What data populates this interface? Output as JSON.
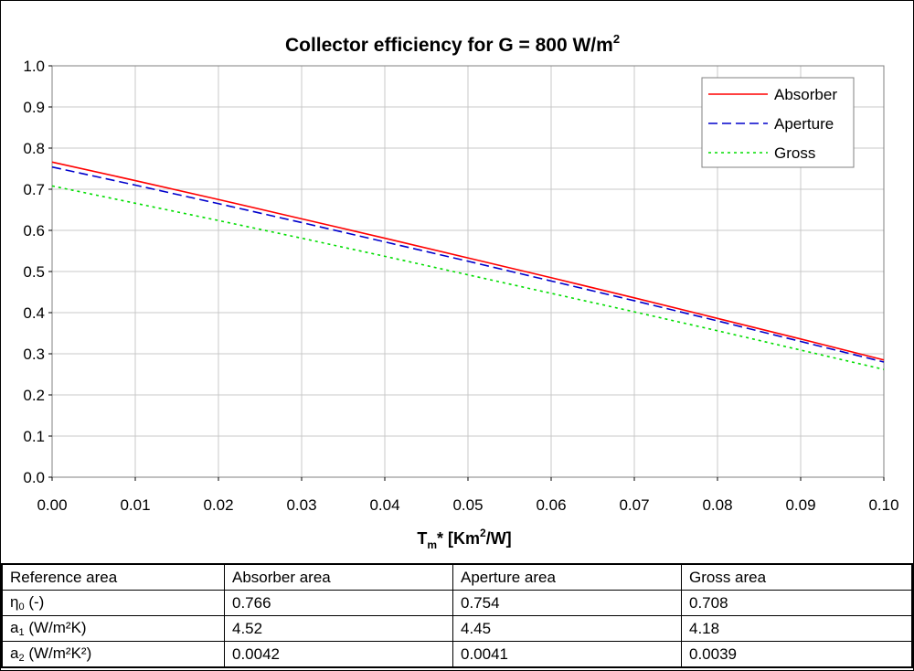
{
  "chart_data": {
    "type": "line",
    "title": "Collector efficiency for G = 800 W/m",
    "title_sup": "2",
    "xlabel_parts": [
      "T",
      "m",
      "* [Km",
      "2",
      "/W]"
    ],
    "xlim": [
      0,
      0.1
    ],
    "ylim": [
      0,
      1.0
    ],
    "x_ticks": [
      "0.00",
      "0.01",
      "0.02",
      "0.03",
      "0.04",
      "0.05",
      "0.06",
      "0.07",
      "0.08",
      "0.09",
      "0.10"
    ],
    "y_ticks": [
      "0.0",
      "0.1",
      "0.2",
      "0.3",
      "0.4",
      "0.5",
      "0.6",
      "0.7",
      "0.8",
      "0.9",
      "1.0"
    ],
    "grid": true,
    "legend_position": "top-right",
    "x": [
      0,
      0.01,
      0.02,
      0.03,
      0.04,
      0.05,
      0.06,
      0.07,
      0.08,
      0.09,
      0.1
    ],
    "series": [
      {
        "name": "Absorber",
        "color": "#ff0000",
        "dash": "solid",
        "values": [
          0.766,
          0.721,
          0.675,
          0.628,
          0.581,
          0.533,
          0.485,
          0.436,
          0.386,
          0.336,
          0.285
        ]
      },
      {
        "name": "Aperture",
        "color": "#0000cc",
        "dash": "dashed",
        "values": [
          0.754,
          0.71,
          0.665,
          0.619,
          0.572,
          0.525,
          0.477,
          0.429,
          0.38,
          0.33,
          0.28
        ]
      },
      {
        "name": "Gross",
        "color": "#00dd00",
        "dash": "dotted",
        "values": [
          0.708,
          0.666,
          0.624,
          0.581,
          0.537,
          0.492,
          0.447,
          0.402,
          0.356,
          0.309,
          0.262
        ]
      }
    ]
  },
  "table": {
    "header": [
      "Reference area",
      "Absorber area",
      "Aperture area",
      "Gross area"
    ],
    "rows": [
      {
        "label_main": "η",
        "label_sub": "0",
        "label_rest": " (-)",
        "values": [
          "0.766",
          "0.754",
          "0.708"
        ]
      },
      {
        "label_main": "a",
        "label_sub": "1",
        "label_rest": " (W/m²K)",
        "values": [
          "4.52",
          "4.45",
          "4.18"
        ]
      },
      {
        "label_main": "a",
        "label_sub": "2",
        "label_rest": " (W/m²K²)",
        "values": [
          "0.0042",
          "0.0041",
          "0.0039"
        ]
      }
    ]
  }
}
